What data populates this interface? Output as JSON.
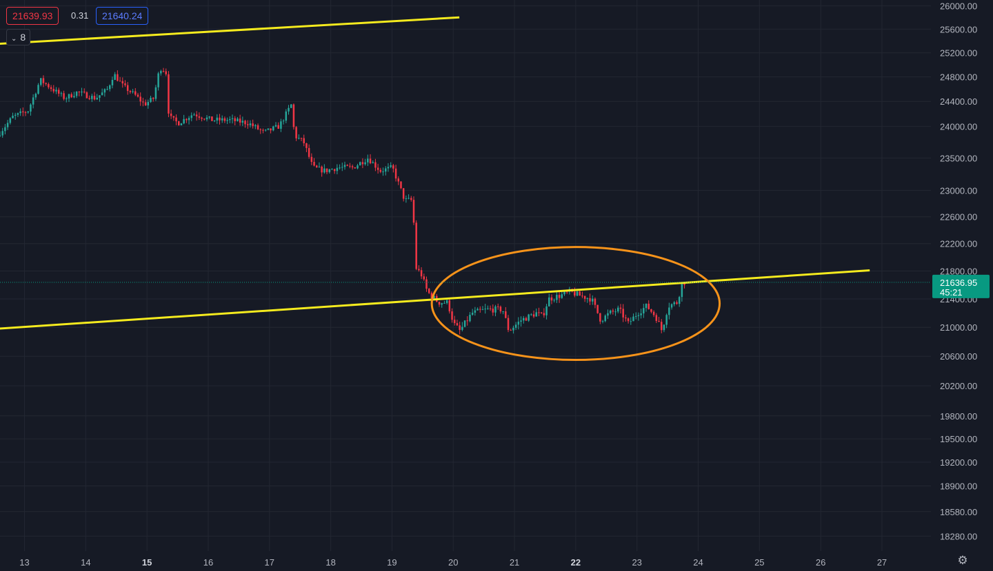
{
  "quote": {
    "bid": "21639.93",
    "spread": "0.31",
    "ask": "21640.24",
    "indicator_count": "8"
  },
  "current_price": {
    "price": "21636.95",
    "countdown": "45:21",
    "value": 21636.95
  },
  "colors": {
    "up": "#26a69a",
    "down": "#f23645",
    "trendline": "#f5eb1e",
    "ellipse": "#f7931a",
    "price_tag": "#089981"
  },
  "chart_data": {
    "type": "candlestick",
    "y_axis": {
      "position": "right",
      "scale": "log",
      "range": [
        18100,
        26100
      ],
      "ticks": [
        "26000.00",
        "25600.00",
        "25200.00",
        "24800.00",
        "24400.00",
        "24000.00",
        "23500.00",
        "23000.00",
        "22600.00",
        "22200.00",
        "21800.00",
        "21400.00",
        "21000.00",
        "20600.00",
        "20200.00",
        "19800.00",
        "19500.00",
        "19200.00",
        "18900.00",
        "18580.00",
        "18280.00"
      ]
    },
    "x_axis": {
      "unit": "day",
      "range": [
        12.6,
        27.8
      ],
      "ticks": [
        {
          "label": "13",
          "value": 13,
          "bold": false
        },
        {
          "label": "14",
          "value": 14,
          "bold": false
        },
        {
          "label": "15",
          "value": 15,
          "bold": true
        },
        {
          "label": "16",
          "value": 16,
          "bold": false
        },
        {
          "label": "17",
          "value": 17,
          "bold": false
        },
        {
          "label": "18",
          "value": 18,
          "bold": false
        },
        {
          "label": "19",
          "value": 19,
          "bold": false
        },
        {
          "label": "20",
          "value": 20,
          "bold": false
        },
        {
          "label": "21",
          "value": 21,
          "bold": false
        },
        {
          "label": "22",
          "value": 22,
          "bold": true
        },
        {
          "label": "23",
          "value": 23,
          "bold": false
        },
        {
          "label": "24",
          "value": 24,
          "bold": false
        },
        {
          "label": "25",
          "value": 25,
          "bold": false
        },
        {
          "label": "26",
          "value": 26,
          "bold": false
        },
        {
          "label": "27",
          "value": 27,
          "bold": false
        }
      ]
    },
    "grid": true,
    "candle_interval_days": 0.0417,
    "price_path": [
      [
        12.6,
        23850
      ],
      [
        12.85,
        24150
      ],
      [
        13.1,
        24250
      ],
      [
        13.3,
        24750
      ],
      [
        13.5,
        24600
      ],
      [
        13.7,
        24450
      ],
      [
        13.9,
        24550
      ],
      [
        14.2,
        24450
      ],
      [
        14.4,
        24600
      ],
      [
        14.5,
        24850
      ],
      [
        14.65,
        24650
      ],
      [
        14.85,
        24500
      ],
      [
        15.0,
        24350
      ],
      [
        15.15,
        24450
      ],
      [
        15.25,
        24950
      ],
      [
        15.35,
        24900
      ],
      [
        15.4,
        24150
      ],
      [
        15.55,
        24050
      ],
      [
        15.8,
        24200
      ],
      [
        16.1,
        24100
      ],
      [
        16.4,
        24100
      ],
      [
        16.7,
        24050
      ],
      [
        16.95,
        23900
      ],
      [
        17.2,
        24000
      ],
      [
        17.4,
        24350
      ],
      [
        17.45,
        23850
      ],
      [
        17.6,
        23750
      ],
      [
        17.75,
        23350
      ],
      [
        17.95,
        23300
      ],
      [
        18.15,
        23350
      ],
      [
        18.4,
        23350
      ],
      [
        18.65,
        23500
      ],
      [
        18.85,
        23300
      ],
      [
        19.05,
        23350
      ],
      [
        19.15,
        23100
      ],
      [
        19.25,
        22850
      ],
      [
        19.38,
        22850
      ],
      [
        19.43,
        21850
      ],
      [
        19.52,
        21750
      ],
      [
        19.62,
        21500
      ],
      [
        19.8,
        21350
      ],
      [
        19.95,
        21350
      ],
      [
        20.05,
        21050
      ],
      [
        20.15,
        20950
      ],
      [
        20.35,
        21200
      ],
      [
        20.6,
        21250
      ],
      [
        20.85,
        21250
      ],
      [
        20.95,
        20950
      ],
      [
        21.15,
        21100
      ],
      [
        21.4,
        21200
      ],
      [
        21.5,
        21150
      ],
      [
        21.6,
        21400
      ],
      [
        21.8,
        21450
      ],
      [
        21.95,
        21500
      ],
      [
        22.1,
        21450
      ],
      [
        22.3,
        21400
      ],
      [
        22.45,
        21100
      ],
      [
        22.6,
        21200
      ],
      [
        22.75,
        21250
      ],
      [
        22.9,
        21050
      ],
      [
        23.05,
        21200
      ],
      [
        23.2,
        21300
      ],
      [
        23.35,
        21150
      ],
      [
        23.45,
        20950
      ],
      [
        23.55,
        21300
      ],
      [
        23.7,
        21350
      ],
      [
        23.78,
        21636.95
      ]
    ],
    "drawings": {
      "upper_trendline": {
        "from": [
          12.55,
          25350
        ],
        "to": [
          20.1,
          25800
        ]
      },
      "lower_trendline": {
        "from": [
          12.55,
          20980
        ],
        "to": [
          26.8,
          21810
        ]
      },
      "highlight_ellipse": {
        "center": [
          22.0,
          21300
        ],
        "x_radius_days": 2.35,
        "price_top": 22150,
        "price_bottom": 20550
      }
    }
  }
}
